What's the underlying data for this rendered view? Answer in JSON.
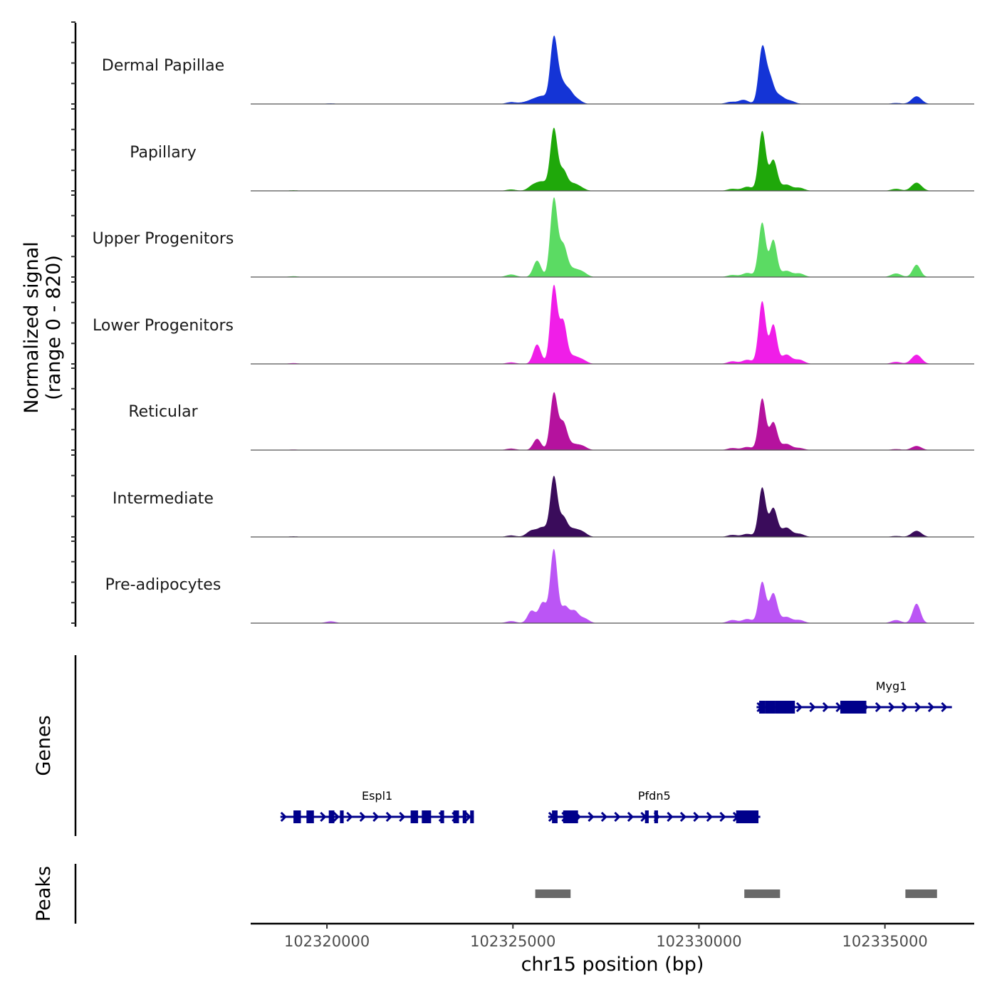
{
  "chart_data": {
    "type": "area",
    "title": "",
    "ylabel": "Normalized signal\n(range 0 - 820)",
    "ylabel_lines": [
      "Normalized signal",
      "(range 0 - 820)"
    ],
    "y_range": [
      0,
      820
    ],
    "xlabel": "chr15 position (bp)",
    "xlim": [
      102317950,
      102337400
    ],
    "x_ticks": [
      102320000,
      102325000,
      102330000,
      102335000
    ],
    "x_tick_labels": [
      "102320000",
      "102325000",
      "102330000",
      "102335000"
    ],
    "tracks": [
      {
        "name": "Dermal Papillae",
        "color": "#1434d6",
        "peaks": [
          {
            "pos": 102320100,
            "value": 6
          },
          {
            "pos": 102324950,
            "value": 18
          },
          {
            "pos": 102325300,
            "value": 14
          },
          {
            "pos": 102325550,
            "value": 40
          },
          {
            "pos": 102325800,
            "value": 70
          },
          {
            "pos": 102326100,
            "value": 630
          },
          {
            "pos": 102326300,
            "value": 190
          },
          {
            "pos": 102326500,
            "value": 110
          },
          {
            "pos": 102326700,
            "value": 50
          },
          {
            "pos": 102330850,
            "value": 20
          },
          {
            "pos": 102331200,
            "value": 40
          },
          {
            "pos": 102331700,
            "value": 530
          },
          {
            "pos": 102331900,
            "value": 240
          },
          {
            "pos": 102332150,
            "value": 80
          },
          {
            "pos": 102332450,
            "value": 30
          },
          {
            "pos": 102335300,
            "value": 10
          },
          {
            "pos": 102335850,
            "value": 75
          }
        ]
      },
      {
        "name": "Papillary",
        "color": "#1fa80a",
        "peaks": [
          {
            "pos": 102319100,
            "value": 6
          },
          {
            "pos": 102324950,
            "value": 14
          },
          {
            "pos": 102325550,
            "value": 55
          },
          {
            "pos": 102325800,
            "value": 80
          },
          {
            "pos": 102326100,
            "value": 600
          },
          {
            "pos": 102326350,
            "value": 190
          },
          {
            "pos": 102326600,
            "value": 60
          },
          {
            "pos": 102326800,
            "value": 30
          },
          {
            "pos": 102330900,
            "value": 20
          },
          {
            "pos": 102331300,
            "value": 40
          },
          {
            "pos": 102331700,
            "value": 580
          },
          {
            "pos": 102332000,
            "value": 300
          },
          {
            "pos": 102332350,
            "value": 60
          },
          {
            "pos": 102332700,
            "value": 30
          },
          {
            "pos": 102335300,
            "value": 20
          },
          {
            "pos": 102335850,
            "value": 80
          }
        ]
      },
      {
        "name": "Upper Progenitors",
        "color": "#5bdb63",
        "peaks": [
          {
            "pos": 102319100,
            "value": 8
          },
          {
            "pos": 102324950,
            "value": 25
          },
          {
            "pos": 102325650,
            "value": 160
          },
          {
            "pos": 102326100,
            "value": 760
          },
          {
            "pos": 102326350,
            "value": 300
          },
          {
            "pos": 102326600,
            "value": 70
          },
          {
            "pos": 102326850,
            "value": 50
          },
          {
            "pos": 102330900,
            "value": 20
          },
          {
            "pos": 102331300,
            "value": 40
          },
          {
            "pos": 102331700,
            "value": 530
          },
          {
            "pos": 102332000,
            "value": 360
          },
          {
            "pos": 102332350,
            "value": 60
          },
          {
            "pos": 102332700,
            "value": 35
          },
          {
            "pos": 102335300,
            "value": 35
          },
          {
            "pos": 102335850,
            "value": 120
          }
        ]
      },
      {
        "name": "Lower Progenitors",
        "color": "#f01ee8",
        "peaks": [
          {
            "pos": 102319100,
            "value": 8
          },
          {
            "pos": 102324950,
            "value": 15
          },
          {
            "pos": 102325650,
            "value": 190
          },
          {
            "pos": 102326100,
            "value": 760
          },
          {
            "pos": 102326350,
            "value": 400
          },
          {
            "pos": 102326600,
            "value": 70
          },
          {
            "pos": 102326850,
            "value": 40
          },
          {
            "pos": 102330900,
            "value": 25
          },
          {
            "pos": 102331300,
            "value": 40
          },
          {
            "pos": 102331700,
            "value": 610
          },
          {
            "pos": 102332000,
            "value": 380
          },
          {
            "pos": 102332350,
            "value": 90
          },
          {
            "pos": 102332700,
            "value": 40
          },
          {
            "pos": 102335300,
            "value": 20
          },
          {
            "pos": 102335850,
            "value": 90
          }
        ]
      },
      {
        "name": "Reticular",
        "color": "#b5129e",
        "peaks": [
          {
            "pos": 102319100,
            "value": 5
          },
          {
            "pos": 102324950,
            "value": 15
          },
          {
            "pos": 102325650,
            "value": 110
          },
          {
            "pos": 102326100,
            "value": 550
          },
          {
            "pos": 102326350,
            "value": 260
          },
          {
            "pos": 102326600,
            "value": 50
          },
          {
            "pos": 102326850,
            "value": 40
          },
          {
            "pos": 102330900,
            "value": 20
          },
          {
            "pos": 102331300,
            "value": 30
          },
          {
            "pos": 102331700,
            "value": 500
          },
          {
            "pos": 102332000,
            "value": 270
          },
          {
            "pos": 102332350,
            "value": 60
          },
          {
            "pos": 102332700,
            "value": 20
          },
          {
            "pos": 102335300,
            "value": 10
          },
          {
            "pos": 102335850,
            "value": 40
          }
        ]
      },
      {
        "name": "Intermediate",
        "color": "#3a0c5b",
        "peaks": [
          {
            "pos": 102319100,
            "value": 6
          },
          {
            "pos": 102324950,
            "value": 15
          },
          {
            "pos": 102325500,
            "value": 60
          },
          {
            "pos": 102325800,
            "value": 90
          },
          {
            "pos": 102326100,
            "value": 580
          },
          {
            "pos": 102326350,
            "value": 180
          },
          {
            "pos": 102326600,
            "value": 70
          },
          {
            "pos": 102326850,
            "value": 50
          },
          {
            "pos": 102330900,
            "value": 20
          },
          {
            "pos": 102331300,
            "value": 30
          },
          {
            "pos": 102331700,
            "value": 480
          },
          {
            "pos": 102332000,
            "value": 280
          },
          {
            "pos": 102332350,
            "value": 90
          },
          {
            "pos": 102332700,
            "value": 30
          },
          {
            "pos": 102335300,
            "value": 10
          },
          {
            "pos": 102335850,
            "value": 60
          }
        ]
      },
      {
        "name": "Pre-adipocytes",
        "color": "#bb55f5",
        "peaks": [
          {
            "pos": 102320100,
            "value": 18
          },
          {
            "pos": 102324950,
            "value": 20
          },
          {
            "pos": 102325500,
            "value": 120
          },
          {
            "pos": 102325800,
            "value": 200
          },
          {
            "pos": 102326100,
            "value": 720
          },
          {
            "pos": 102326400,
            "value": 160
          },
          {
            "pos": 102326650,
            "value": 110
          },
          {
            "pos": 102326900,
            "value": 50
          },
          {
            "pos": 102330900,
            "value": 30
          },
          {
            "pos": 102331300,
            "value": 40
          },
          {
            "pos": 102331700,
            "value": 400
          },
          {
            "pos": 102332000,
            "value": 290
          },
          {
            "pos": 102332350,
            "value": 60
          },
          {
            "pos": 102332700,
            "value": 30
          },
          {
            "pos": 102335300,
            "value": 30
          },
          {
            "pos": 102335850,
            "value": 190
          }
        ]
      }
    ],
    "genes_track": {
      "label": "Genes",
      "color": "#00008b",
      "genes": [
        {
          "name": "Myg1",
          "strand": "+",
          "row": 0,
          "start": 102331550,
          "end": 102336800,
          "exons": [
            [
              102331620,
              102331780
            ],
            [
              102331780,
              102332050
            ],
            [
              102332050,
              102332580
            ],
            [
              102333800,
              102334500
            ]
          ]
        },
        {
          "name": "Espl1",
          "strand": "+",
          "row": 1,
          "start": 102318750,
          "end": 102323950,
          "exons": [
            [
              102319100,
              102319300
            ],
            [
              102319450,
              102319650
            ],
            [
              102320050,
              102320200
            ],
            [
              102320350,
              102320450
            ],
            [
              102322250,
              102322450
            ],
            [
              102322550,
              102322800
            ],
            [
              102323050,
              102323150
            ],
            [
              102323400,
              102323550
            ],
            [
              102323650,
              102323750
            ],
            [
              102323850,
              102323950
            ]
          ]
        },
        {
          "name": "Pfdn5",
          "strand": "+",
          "row": 1,
          "start": 102325950,
          "end": 102331650,
          "exons": [
            [
              102326050,
              102326200
            ],
            [
              102326350,
              102326750
            ],
            [
              102328550,
              102328650
            ],
            [
              102328800,
              102328900
            ],
            [
              102331000,
              102331600
            ]
          ]
        }
      ]
    },
    "peaks_track": {
      "label": "Peaks",
      "color": "#696969",
      "regions": [
        [
          102325600,
          102326550
        ],
        [
          102331220,
          102332180
        ],
        [
          102335550,
          102336400
        ]
      ]
    }
  }
}
